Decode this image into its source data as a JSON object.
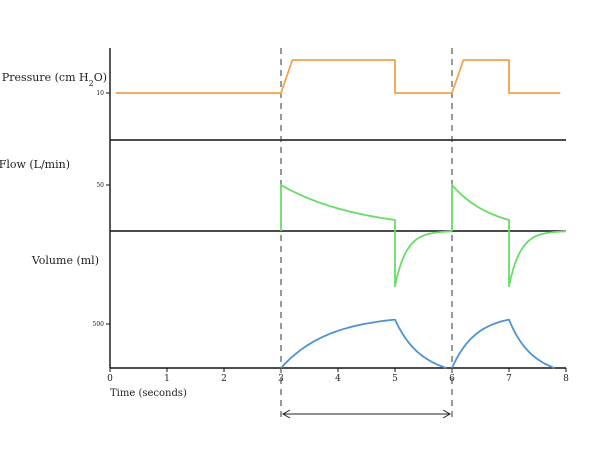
{
  "chart_data": {
    "type": "line",
    "xlabel": "Time (seconds)",
    "x_ticks": [
      "0",
      "1",
      "2",
      "3",
      "4",
      "5",
      "6",
      "7",
      "8"
    ],
    "xlim": [
      0,
      8
    ],
    "grid": false,
    "vertical_markers_x": [
      3,
      6
    ],
    "interval_arrow": {
      "from": 3,
      "to": 6
    },
    "panels": [
      {
        "name": "pressure",
        "label_main": "Pressure (cm H",
        "label_sub": "2",
        "label_end": "O)",
        "ytick": "10",
        "color": "#f4a24a",
        "baseline": 10,
        "peak": 17,
        "breaths": [
          [
            3,
            3.2,
            5
          ],
          [
            6,
            6.2,
            7
          ]
        ]
      },
      {
        "name": "flow",
        "label": "Flow (L/min)",
        "ytick": "50",
        "color": "#66dd66",
        "peak_inspiratory": 50,
        "end_inspiratory": 12,
        "peak_expiratory": -60,
        "breaths": [
          [
            3,
            5,
            6
          ],
          [
            6,
            7,
            8
          ]
        ]
      },
      {
        "name": "volume",
        "label": "Volume (ml)",
        "ytick": "500",
        "color": "#4f92d3",
        "peak": 550,
        "breaths": [
          [
            3,
            5,
            5.9
          ],
          [
            6,
            7,
            7.8
          ]
        ]
      }
    ]
  }
}
